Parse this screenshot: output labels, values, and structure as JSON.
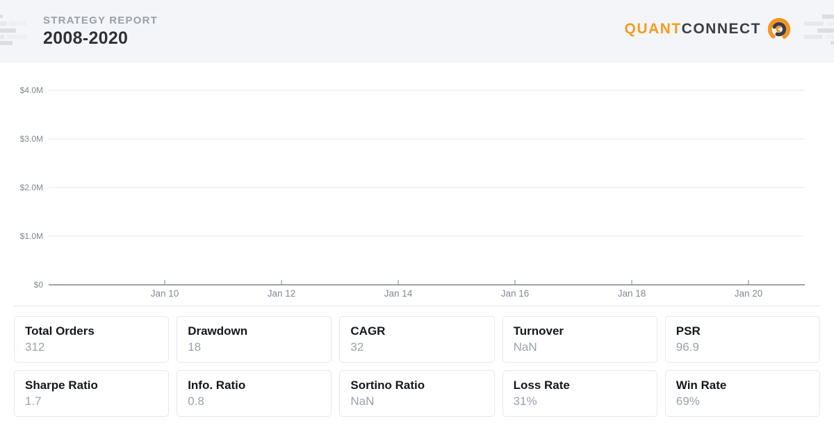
{
  "header": {
    "report_label": "STRATEGY REPORT",
    "report_period": "2008-2020",
    "brand_part1": "QUANT",
    "brand_part2": "CONNECT"
  },
  "colors": {
    "header_bg": "#f4f5f8",
    "brand_orange": "#f29c1e",
    "brand_dark": "#3b3e42",
    "grid_line": "#e5e7ec",
    "axis_line": "#7e848e",
    "tick_text": "#828893",
    "card_border": "#e4e7ef",
    "card_title": "#14171c",
    "card_value": "#9ba2ad"
  },
  "chart_data": {
    "type": "line",
    "title": "",
    "xlabel": "",
    "ylabel": "",
    "y_tick_labels": [
      "$4.0M",
      "$3.0M",
      "$2.0M",
      "$1.0M",
      "$0"
    ],
    "y_tick_values": [
      4000000,
      3000000,
      2000000,
      1000000,
      0
    ],
    "x_tick_labels": [
      "Jan 10",
      "Jan 12",
      "Jan 14",
      "Jan 16",
      "Jan 18",
      "Jan 20"
    ],
    "ylim": [
      0,
      4500000
    ],
    "xlim_labels": [
      "Jan 08",
      "Jan 21"
    ],
    "grid": true,
    "legend": "none",
    "series": [],
    "note": "equity chart frame rendered with no visible plotted series"
  },
  "stats": [
    {
      "label": "Total Orders",
      "value": "312"
    },
    {
      "label": "Drawdown",
      "value": "18"
    },
    {
      "label": "CAGR",
      "value": "32"
    },
    {
      "label": "Turnover",
      "value": "NaN"
    },
    {
      "label": "PSR",
      "value": "96.9"
    },
    {
      "label": "Sharpe Ratio",
      "value": "1.7"
    },
    {
      "label": "Info. Ratio",
      "value": "0.8"
    },
    {
      "label": "Sortino Ratio",
      "value": "NaN"
    },
    {
      "label": "Loss Rate",
      "value": "31%"
    },
    {
      "label": "Win Rate",
      "value": "69%"
    }
  ]
}
